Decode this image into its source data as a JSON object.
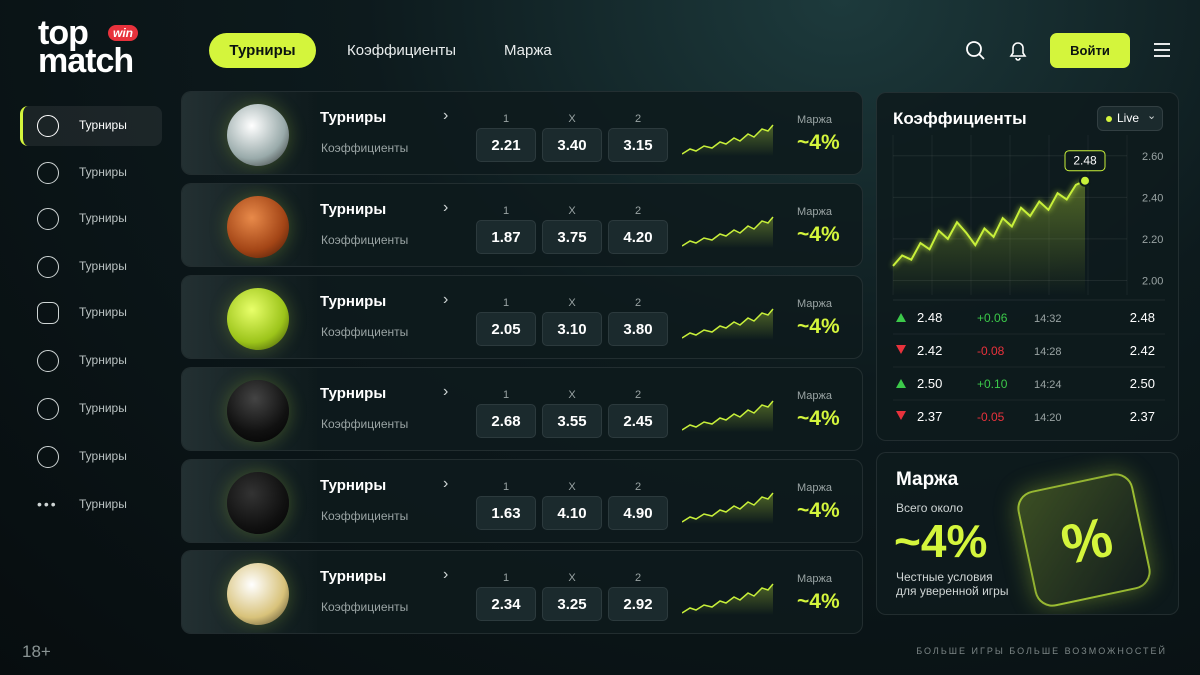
{
  "logo": {
    "top": "top",
    "badge": "win",
    "bottom": "match"
  },
  "nav": [
    "Турниры",
    "Коэффициенты",
    "Маржа"
  ],
  "login": "Войти",
  "sidebar": [
    "Турниры",
    "Турниры",
    "Турниры",
    "Турниры",
    "Турниры",
    "Турниры",
    "Турниры",
    "Турниры",
    "Турниры"
  ],
  "rows": [
    {
      "title": "Турниры",
      "subtitle": "Коэффициенты",
      "odds_labels": [
        "1",
        "X",
        "2"
      ],
      "odds": [
        "2.21",
        "3.40",
        "3.15"
      ],
      "margin_label": "Маржа",
      "margin": "~4%"
    },
    {
      "title": "Турниры",
      "subtitle": "Коэффициенты",
      "odds_labels": [
        "1",
        "X",
        "2"
      ],
      "odds": [
        "1.87",
        "3.75",
        "4.20"
      ],
      "margin_label": "Маржа",
      "margin": "~4%"
    },
    {
      "title": "Турниры",
      "subtitle": "Коэффициенты",
      "odds_labels": [
        "1",
        "X",
        "2"
      ],
      "odds": [
        "2.05",
        "3.10",
        "3.80"
      ],
      "margin_label": "Маржа",
      "margin": "~4%"
    },
    {
      "title": "Турниры",
      "subtitle": "Коэффициенты",
      "odds_labels": [
        "1",
        "X",
        "2"
      ],
      "odds": [
        "2.68",
        "3.55",
        "2.45"
      ],
      "margin_label": "Маржа",
      "margin": "~4%"
    },
    {
      "title": "Турниры",
      "subtitle": "Коэффициенты",
      "odds_labels": [
        "1",
        "X",
        "2"
      ],
      "odds": [
        "1.63",
        "4.10",
        "4.90"
      ],
      "margin_label": "Маржа",
      "margin": "~4%"
    },
    {
      "title": "Турниры",
      "subtitle": "Коэффициенты",
      "odds_labels": [
        "1",
        "X",
        "2"
      ],
      "odds": [
        "2.34",
        "3.25",
        "2.92"
      ],
      "margin_label": "Маржа",
      "margin": "~4%"
    }
  ],
  "odds_panel": {
    "title": "Коэффициенты",
    "live": "Live",
    "chart": {
      "type": "line",
      "color": "#c8f03a",
      "values": [
        2.07,
        2.12,
        2.1,
        2.18,
        2.15,
        2.24,
        2.2,
        2.28,
        2.23,
        2.17,
        2.25,
        2.21,
        2.3,
        2.26,
        2.35,
        2.31,
        2.38,
        2.34,
        2.42,
        2.39,
        2.46,
        2.48
      ],
      "callout": "2.48",
      "ylim": [
        1.93,
        2.7
      ],
      "yticks": [
        {
          "value": 2.6,
          "label": "2.60"
        },
        {
          "value": 2.4,
          "label": "2.40"
        },
        {
          "value": 2.2,
          "label": "2.20"
        },
        {
          "value": 2.0,
          "label": "2.00"
        }
      ]
    },
    "history": [
      [
        "2.48",
        "+0.06",
        "14:32",
        "2.48"
      ],
      [
        "2.42",
        "-0.08",
        "14:28",
        "2.42"
      ],
      [
        "2.50",
        "+0.10",
        "14:24",
        "2.50"
      ],
      [
        "2.37",
        "-0.05",
        "14:20",
        "2.37"
      ]
    ]
  },
  "margin_panel": {
    "title": "Маржа",
    "subtitle": "Всего около",
    "value": "~4%",
    "note": [
      "Честные условия",
      "для уверенной игры"
    ]
  },
  "age": "18+",
  "footer": "БОЛЬШЕ ИГРЫ БОЛЬШЕ ВОЗМОЖНОСТЕЙ"
}
